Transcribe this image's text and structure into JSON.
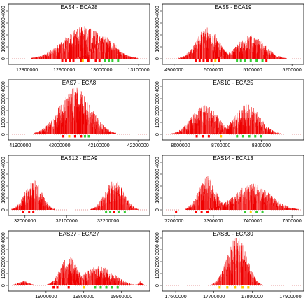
{
  "chart_data": [
    {
      "type": "area",
      "title": "EAS4 - ECA28",
      "xlim": [
        12750000,
        13130000
      ],
      "ylim": [
        0,
        4000
      ],
      "xticks": [
        12800000,
        12900000,
        13000000,
        13100000
      ],
      "yticks": [
        0,
        1000,
        2000,
        3000,
        4000
      ],
      "peaks": [
        {
          "center": 12955000,
          "width": 55000,
          "height": 2500
        },
        {
          "center": 13010000,
          "width": 30000,
          "height": 1700
        }
      ],
      "markers": [
        {
          "x": 12895000,
          "color": "#ff0000"
        },
        {
          "x": 12905000,
          "color": "#ff0000"
        },
        {
          "x": 12915000,
          "color": "#ff0000"
        },
        {
          "x": 12925000,
          "color": "#ff0000"
        },
        {
          "x": 12945000,
          "color": "#ff0000"
        },
        {
          "x": 12950000,
          "color": "#ffcc00"
        },
        {
          "x": 12965000,
          "color": "#ff0000"
        },
        {
          "x": 12985000,
          "color": "#ff0000"
        },
        {
          "x": 12995000,
          "color": "#ff0000"
        },
        {
          "x": 13010000,
          "color": "#33cc33"
        },
        {
          "x": 13020000,
          "color": "#33cc33"
        },
        {
          "x": 13030000,
          "color": "#33cc33"
        },
        {
          "x": 13045000,
          "color": "#33cc33"
        }
      ]
    },
    {
      "type": "area",
      "title": "EAS5 - ECA19",
      "xlim": [
        4870000,
        5230000
      ],
      "ylim": [
        0,
        4000
      ],
      "xticks": [
        4900000,
        5000000,
        5100000,
        5200000
      ],
      "yticks": [
        0,
        1000,
        2000,
        3000,
        4000
      ],
      "peaks": [
        {
          "center": 4985000,
          "width": 28000,
          "height": 2400
        },
        {
          "center": 5095000,
          "width": 35000,
          "height": 1800
        }
      ],
      "markers": [
        {
          "x": 4955000,
          "color": "#ff0000"
        },
        {
          "x": 4965000,
          "color": "#ff0000"
        },
        {
          "x": 4975000,
          "color": "#ff0000"
        },
        {
          "x": 4985000,
          "color": "#ff0000"
        },
        {
          "x": 4995000,
          "color": "#ff0000"
        },
        {
          "x": 5005000,
          "color": "#ffcc00"
        },
        {
          "x": 5015000,
          "color": "#ff0000"
        },
        {
          "x": 5060000,
          "color": "#33cc33"
        },
        {
          "x": 5070000,
          "color": "#33cc33"
        },
        {
          "x": 5080000,
          "color": "#33cc33"
        },
        {
          "x": 5095000,
          "color": "#33cc33"
        },
        {
          "x": 5110000,
          "color": "#33cc33"
        },
        {
          "x": 5125000,
          "color": "#33cc33"
        },
        {
          "x": 5135000,
          "color": "#ff0000"
        }
      ]
    },
    {
      "type": "area",
      "title": "EAS7 - ECA8",
      "xlim": [
        41870000,
        42230000
      ],
      "ylim": [
        0,
        4000
      ],
      "xticks": [
        41900000,
        42000000,
        42100000,
        42200000
      ],
      "yticks": [
        0,
        1000,
        2000,
        3000,
        4000
      ],
      "peaks": [
        {
          "center": 42040000,
          "width": 40000,
          "height": 3600
        }
      ],
      "markers": [
        {
          "x": 42010000,
          "color": "#ff0000"
        },
        {
          "x": 42025000,
          "color": "#ffcc00"
        },
        {
          "x": 42040000,
          "color": "#ff0000"
        },
        {
          "x": 42055000,
          "color": "#ff0000"
        },
        {
          "x": 42065000,
          "color": "#33cc33"
        },
        {
          "x": 42075000,
          "color": "#33cc33"
        }
      ]
    },
    {
      "type": "area",
      "title": "EAS10 - ECA25",
      "xlim": [
        8555000,
        8905000
      ],
      "ylim": [
        0,
        4000
      ],
      "xticks": [
        8600000,
        8700000,
        8800000
      ],
      "yticks": [
        0,
        1000,
        2000,
        3000,
        4000
      ],
      "peaks": [
        {
          "center": 8660000,
          "width": 32000,
          "height": 2300
        },
        {
          "center": 8765000,
          "width": 32000,
          "height": 2300
        }
      ],
      "markers": [
        {
          "x": 8640000,
          "color": "#ff0000"
        },
        {
          "x": 8655000,
          "color": "#ff0000"
        },
        {
          "x": 8670000,
          "color": "#ff0000"
        },
        {
          "x": 8700000,
          "color": "#ffcc00"
        },
        {
          "x": 8740000,
          "color": "#33cc33"
        },
        {
          "x": 8755000,
          "color": "#33cc33"
        },
        {
          "x": 8770000,
          "color": "#33cc33"
        },
        {
          "x": 8785000,
          "color": "#33cc33"
        },
        {
          "x": 8800000,
          "color": "#33cc33"
        }
      ]
    },
    {
      "type": "area",
      "title": "EAS12 - ECA9",
      "xlim": [
        31960000,
        32300000
      ],
      "ylim": [
        0,
        4000
      ],
      "xticks": [
        32000000,
        32100000,
        32200000
      ],
      "yticks": [
        0,
        1000,
        2000,
        3000,
        4000
      ],
      "peaks": [
        {
          "center": 32020000,
          "width": 20000,
          "height": 2300
        },
        {
          "center": 32215000,
          "width": 22000,
          "height": 2300
        }
      ],
      "markers": [
        {
          "x": 31995000,
          "color": "#ff0000"
        },
        {
          "x": 32010000,
          "color": "#ff0000"
        },
        {
          "x": 32020000,
          "color": "#ff0000"
        },
        {
          "x": 32195000,
          "color": "#33cc33"
        },
        {
          "x": 32205000,
          "color": "#33cc33"
        },
        {
          "x": 32215000,
          "color": "#ff0000"
        },
        {
          "x": 32225000,
          "color": "#33cc33"
        },
        {
          "x": 32240000,
          "color": "#33cc33"
        }
      ]
    },
    {
      "type": "area",
      "title": "EAS14 - ECA13",
      "xlim": [
        7170000,
        7530000
      ],
      "ylim": [
        0,
        4000
      ],
      "xticks": [
        7200000,
        7300000,
        7400000,
        7500000
      ],
      "yticks": [
        0,
        1000,
        2000,
        3000,
        4000
      ],
      "peaks": [
        {
          "center": 7285000,
          "width": 22000,
          "height": 2600
        },
        {
          "center": 7400000,
          "width": 45000,
          "height": 2000
        }
      ],
      "markers": [
        {
          "x": 7205000,
          "color": "#ff0000"
        },
        {
          "x": 7255000,
          "color": "#ff0000"
        },
        {
          "x": 7270000,
          "color": "#ff0000"
        },
        {
          "x": 7285000,
          "color": "#ff0000"
        },
        {
          "x": 7380000,
          "color": "#33cc33"
        },
        {
          "x": 7395000,
          "color": "#ffcc00"
        },
        {
          "x": 7410000,
          "color": "#33cc33"
        },
        {
          "x": 7425000,
          "color": "#33cc33"
        }
      ]
    },
    {
      "type": "area",
      "title": "EAS27 - ECA27",
      "xlim": [
        19600000,
        19975000
      ],
      "ylim": [
        0,
        4000
      ],
      "xticks": [
        19700000,
        19800000,
        19900000
      ],
      "yticks": [
        0,
        1000,
        2000,
        3000,
        4000
      ],
      "peaks": [
        {
          "center": 19640000,
          "width": 15000,
          "height": 350
        },
        {
          "center": 19760000,
          "width": 22000,
          "height": 2300
        },
        {
          "center": 19840000,
          "width": 40000,
          "height": 1500
        },
        {
          "center": 19950000,
          "width": 6000,
          "height": 350
        }
      ],
      "markers": [
        {
          "x": 19720000,
          "color": "#ff0000"
        },
        {
          "x": 19730000,
          "color": "#ff0000"
        },
        {
          "x": 19760000,
          "color": "#ff0000"
        },
        {
          "x": 19800000,
          "color": "#ffcc00"
        },
        {
          "x": 19830000,
          "color": "#33cc33"
        },
        {
          "x": 19845000,
          "color": "#33cc33"
        },
        {
          "x": 19860000,
          "color": "#33cc33"
        },
        {
          "x": 19875000,
          "color": "#33cc33"
        },
        {
          "x": 19890000,
          "color": "#33cc33"
        }
      ]
    },
    {
      "type": "area",
      "title": "EAS30 - ECA30",
      "xlim": [
        17565000,
        17935000
      ],
      "ylim": [
        0,
        4000
      ],
      "xticks": [
        17600000,
        17700000,
        17800000,
        17900000
      ],
      "yticks": [
        0,
        1000,
        2000,
        3000,
        4000
      ],
      "peaks": [
        {
          "center": 17760000,
          "width": 25000,
          "height": 3800
        }
      ],
      "markers": [
        {
          "x": 17715000,
          "color": "#ffcc00"
        },
        {
          "x": 17735000,
          "color": "#ffcc00"
        },
        {
          "x": 17755000,
          "color": "#ffcc00"
        },
        {
          "x": 17775000,
          "color": "#ffcc00"
        },
        {
          "x": 17790000,
          "color": "#ffcc00"
        }
      ]
    }
  ]
}
